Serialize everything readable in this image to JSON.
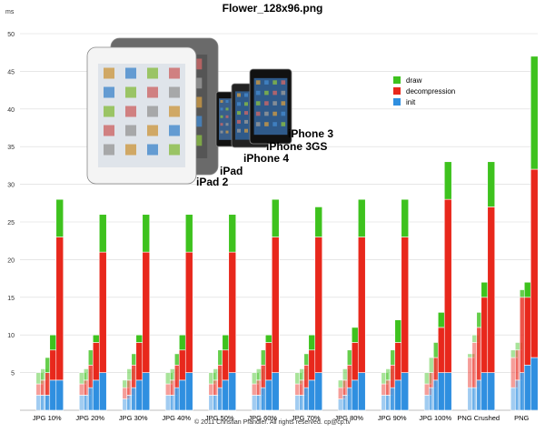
{
  "chart_data": {
    "type": "bar",
    "title": "Flower_128x96.png",
    "ylabel": "ms",
    "xlabel": "",
    "ylim": [
      0,
      50
    ],
    "yticks": [
      5,
      10,
      15,
      20,
      25,
      30,
      35,
      40,
      45,
      50
    ],
    "categories": [
      "JPG 10%",
      "JPG 20%",
      "JPG 30%",
      "JPG 40%",
      "JPG 50%",
      "JPG 60%",
      "JPG 70%",
      "JPG 80%",
      "JPG 90%",
      "JPG 100%",
      "PNG Crushed",
      "PNG"
    ],
    "devices": [
      "iPad 2",
      "iPad",
      "iPhone 4",
      "iPhone 3GS",
      "iPhone 3"
    ],
    "segments": [
      "init",
      "decompression",
      "draw"
    ],
    "colors": {
      "init": "#2f8fe0",
      "decompression": "#e8281c",
      "draw": "#3ec21e"
    },
    "values": [
      [
        [
          2,
          1.5,
          1.5
        ],
        [
          2,
          2,
          1.5
        ],
        [
          2,
          3,
          2
        ],
        [
          4,
          4,
          2
        ],
        [
          4,
          19,
          5
        ]
      ],
      [
        [
          2,
          1.5,
          1.5
        ],
        [
          2,
          2,
          1.5
        ],
        [
          3,
          3,
          2
        ],
        [
          4,
          5,
          1
        ],
        [
          5,
          16,
          5
        ]
      ],
      [
        [
          1.5,
          1.5,
          1
        ],
        [
          2,
          2,
          1.5
        ],
        [
          3,
          3,
          1.5
        ],
        [
          4,
          5,
          1
        ],
        [
          5,
          16,
          5
        ]
      ],
      [
        [
          2,
          1.5,
          1.5
        ],
        [
          2,
          2,
          1.5
        ],
        [
          3,
          3,
          1.5
        ],
        [
          4,
          4,
          2
        ],
        [
          5,
          16,
          5
        ]
      ],
      [
        [
          2,
          1.5,
          1.5
        ],
        [
          2,
          2,
          1.5
        ],
        [
          3,
          3,
          2
        ],
        [
          4,
          4,
          2
        ],
        [
          5,
          16,
          5
        ]
      ],
      [
        [
          2,
          1.5,
          1.5
        ],
        [
          2,
          2,
          1.5
        ],
        [
          3,
          3,
          2
        ],
        [
          4,
          5,
          1
        ],
        [
          5,
          18,
          5
        ]
      ],
      [
        [
          2,
          1.5,
          1.5
        ],
        [
          2,
          2,
          1.5
        ],
        [
          3,
          3,
          1.5
        ],
        [
          4,
          4,
          2
        ],
        [
          5,
          18,
          4
        ]
      ],
      [
        [
          1.5,
          1.5,
          1
        ],
        [
          2,
          2,
          1.5
        ],
        [
          3,
          3,
          2
        ],
        [
          4,
          5,
          2
        ],
        [
          5,
          18,
          5
        ]
      ],
      [
        [
          2,
          1.5,
          1.5
        ],
        [
          2,
          2,
          1.5
        ],
        [
          3,
          3,
          2
        ],
        [
          4,
          5,
          3
        ],
        [
          5,
          18,
          5
        ]
      ],
      [
        [
          2,
          1.5,
          1.5
        ],
        [
          3,
          2,
          2
        ],
        [
          4,
          3,
          2
        ],
        [
          5,
          6,
          2
        ],
        [
          5,
          23,
          5
        ]
      ],
      [
        [
          3,
          4,
          0.5
        ],
        [
          3,
          6,
          1
        ],
        [
          4,
          7,
          2
        ],
        [
          5,
          10,
          2
        ],
        [
          5,
          22,
          6
        ]
      ],
      [
        [
          3,
          4,
          1
        ],
        [
          4,
          4,
          1
        ],
        [
          5,
          10,
          1
        ],
        [
          6,
          9,
          2
        ],
        [
          7,
          25,
          15
        ]
      ]
    ],
    "legend": [
      "draw",
      "decompression",
      "init"
    ],
    "legend_position": "top-right"
  },
  "footer": "© 2011 Christian Pfandler. All rights reserved. cp@cp.tv"
}
